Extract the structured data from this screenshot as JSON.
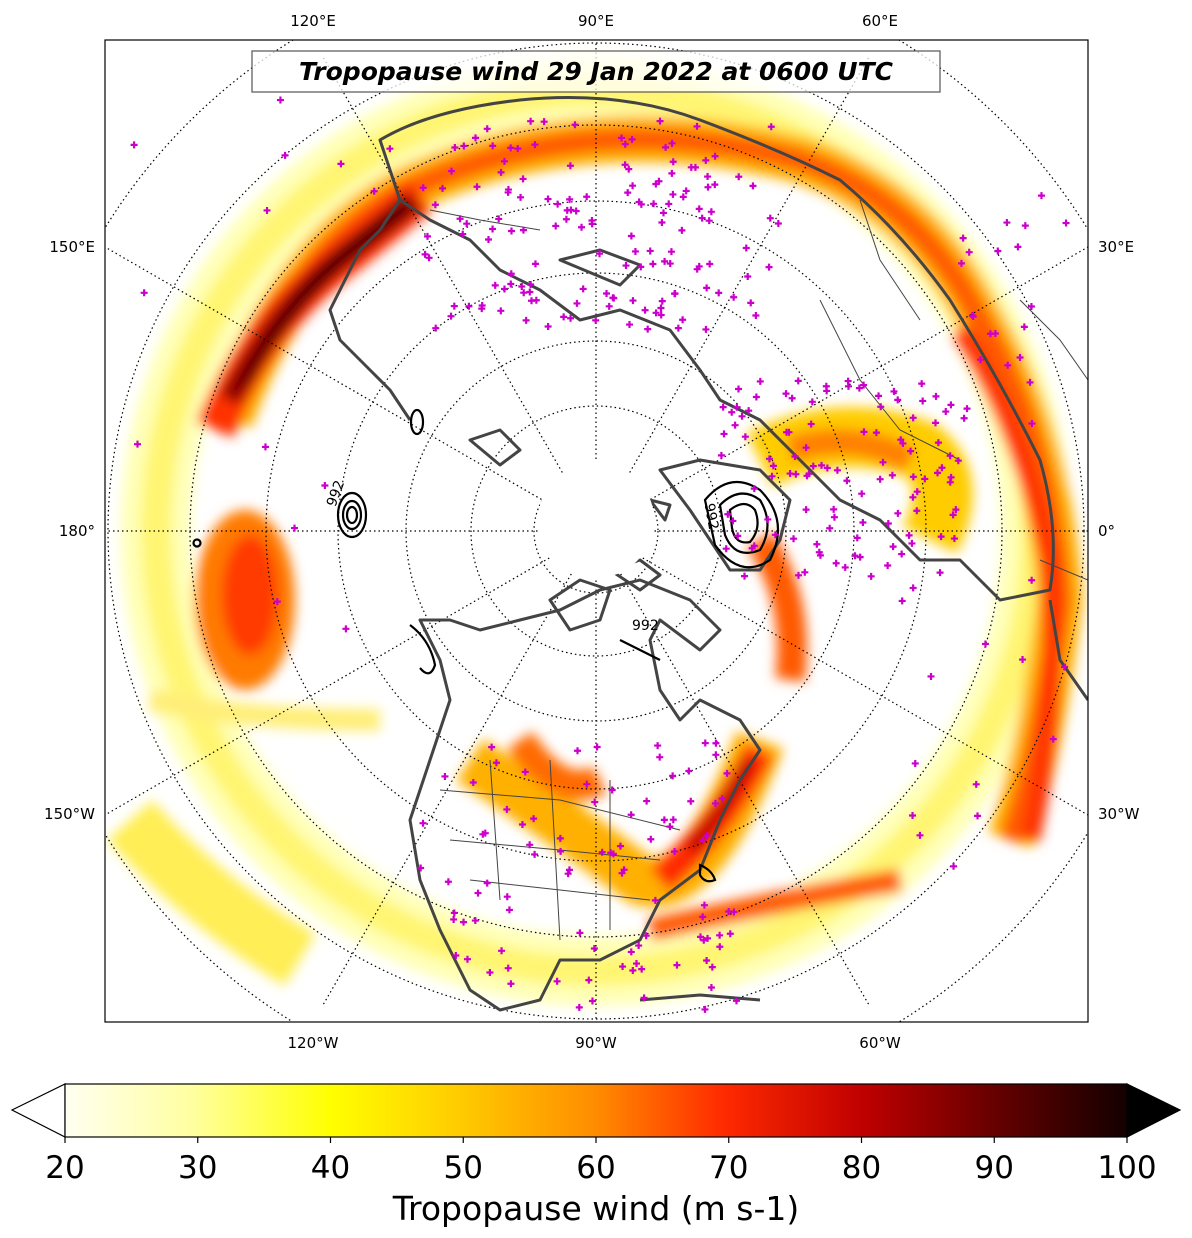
{
  "title": "Tropopause wind 29 Jan 2022 at 0600 UTC",
  "colorbar": {
    "label": "Tropopause wind (m s-1)",
    "ticks": [
      "20",
      "30",
      "40",
      "50",
      "60",
      "70",
      "80",
      "90",
      "100"
    ],
    "min": 20,
    "max": 100,
    "extend": "both"
  },
  "lon_labels": {
    "top": [
      "120°E",
      "90°E",
      "60°E"
    ],
    "bottom": [
      "120°W",
      "90°W",
      "60°W"
    ],
    "left": [
      "150°E",
      "180°",
      "150°W"
    ],
    "right": [
      "30°E",
      "0°",
      "30°W"
    ]
  },
  "contour_labels": [
    "992",
    "992",
    "992"
  ],
  "colors": {
    "coast": "#444444",
    "station_marker": "#cc00cc",
    "jet_low": "#ffff66",
    "jet_mid": "#ff8800",
    "jet_high": "#cc0000",
    "jet_max": "#220000"
  },
  "map": {
    "projection": "north polar stereographic",
    "grid": "dotted graticule every 30° longitude and 10° latitude",
    "station_marker": "+"
  }
}
